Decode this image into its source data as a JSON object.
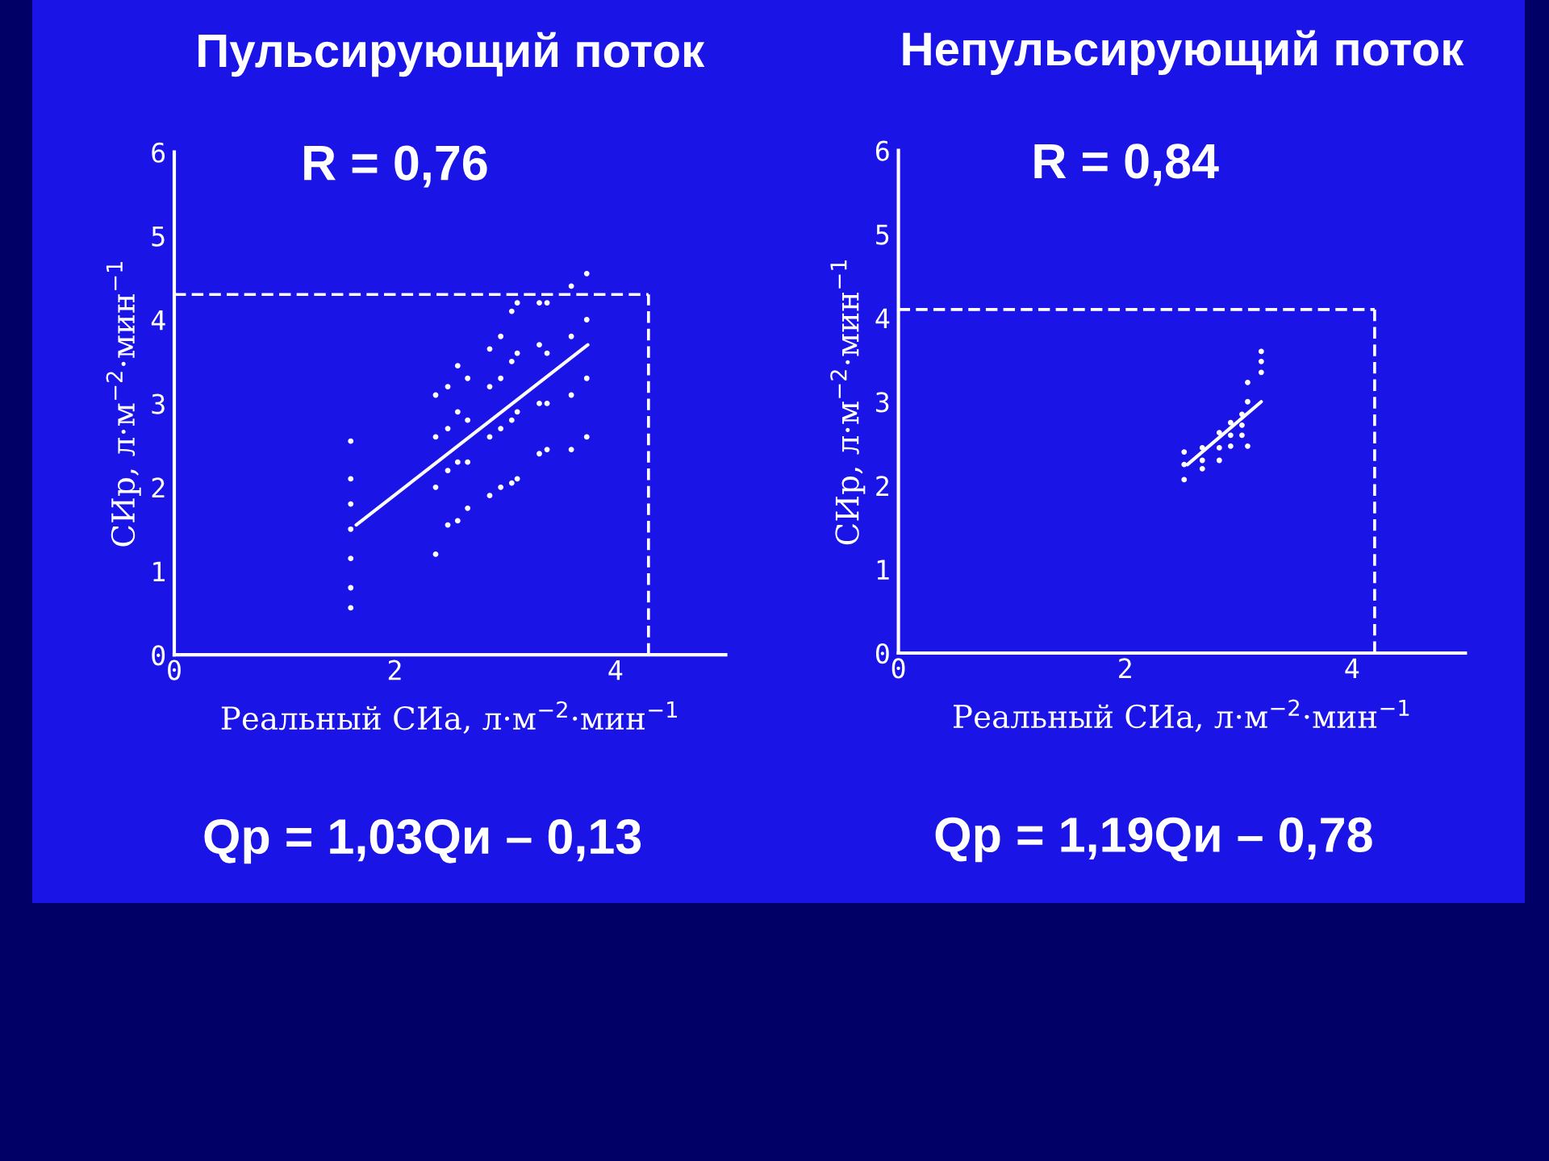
{
  "chart_data": [
    {
      "type": "scatter",
      "title": "Пульсирующий поток",
      "xlabel": "Реальный СИа, л·м$^{−2}$·мин$^{−1}$",
      "ylabel": "СИр, л·м$^{−2}$·мин$^{−1}$",
      "xlim": [
        0,
        5
      ],
      "ylim": [
        0,
        6
      ],
      "xticks": [
        0,
        2,
        4
      ],
      "yticks": [
        0,
        1,
        2,
        3,
        4,
        5,
        6
      ],
      "grid": false,
      "legend": false,
      "annotations": [
        "R = 0,76",
        "Qp = 1,03Qи – 0,13"
      ],
      "ref_lines": [
        {
          "axis": "y",
          "value": 4.3,
          "color": "#ffffff",
          "line_style": "dashed"
        },
        {
          "axis": "x",
          "value": 4.3,
          "color": "#ffffff",
          "line_style": "dashed"
        }
      ],
      "series": [
        {
          "marker": "circle",
          "color": "#ffffff",
          "x": [
            1.6,
            1.6,
            1.6,
            1.6,
            1.6,
            1.6,
            1.6,
            2.37,
            2.37,
            2.37,
            2.37,
            2.48,
            2.48,
            2.48,
            2.48,
            2.57,
            2.57,
            2.57,
            2.57,
            2.66,
            2.66,
            2.66,
            2.66,
            2.86,
            2.86,
            2.86,
            2.86,
            2.96,
            2.96,
            2.96,
            2.96,
            3.06,
            3.06,
            3.06,
            3.06,
            3.11,
            3.11,
            3.11,
            3.11,
            3.31,
            3.31,
            3.31,
            3.31,
            3.38,
            3.38,
            3.38,
            3.38,
            3.6,
            3.6,
            3.6,
            3.6,
            3.74,
            3.74,
            3.74,
            3.74
          ],
          "values": [
            2.55,
            2.1,
            1.8,
            1.5,
            1.15,
            0.8,
            0.56,
            3.1,
            2.6,
            2.0,
            1.2,
            3.2,
            2.7,
            2.2,
            1.55,
            3.45,
            2.9,
            2.3,
            1.6,
            3.3,
            2.8,
            2.3,
            1.75,
            3.65,
            3.2,
            2.6,
            1.9,
            3.8,
            3.3,
            2.7,
            2.0,
            4.1,
            3.5,
            2.8,
            2.05,
            4.2,
            3.6,
            2.9,
            2.1,
            4.2,
            3.7,
            3.0,
            2.4,
            4.2,
            3.6,
            3.0,
            2.45,
            4.4,
            3.8,
            3.1,
            2.45,
            4.55,
            4.0,
            3.3,
            2.6
          ]
        },
        {
          "type": "line",
          "color": "#ffffff",
          "x": [
            1.65,
            3.75
          ],
          "values": [
            1.55,
            3.7
          ]
        }
      ]
    },
    {
      "type": "scatter",
      "title": "Непульсирующий поток",
      "xlabel": "Реальный СИа, л·м$^{−2}$·мин$^{−1}$",
      "ylabel": "СИр, л·м$^{−2}$·мин$^{−1}$",
      "xlim": [
        0,
        5
      ],
      "ylim": [
        0,
        6
      ],
      "xticks": [
        0,
        2,
        4
      ],
      "yticks": [
        0,
        1,
        2,
        3,
        4,
        5,
        6
      ],
      "grid": false,
      "legend": false,
      "annotations": [
        "R = 0,84",
        "Qp = 1,19Qи – 0,78"
      ],
      "ref_lines": [
        {
          "axis": "y",
          "value": 4.1,
          "color": "#ffffff",
          "line_style": "dashed"
        },
        {
          "axis": "x",
          "value": 4.2,
          "color": "#ffffff",
          "line_style": "dashed"
        }
      ],
      "series": [
        {
          "marker": "circle",
          "color": "#ffffff",
          "x": [
            2.52,
            2.52,
            2.52,
            2.68,
            2.68,
            2.68,
            2.83,
            2.83,
            2.83,
            2.93,
            2.93,
            2.93,
            3.03,
            3.03,
            3.03,
            3.08,
            3.08,
            3.08,
            3.2,
            3.2,
            3.2
          ],
          "values": [
            2.4,
            2.25,
            2.07,
            2.45,
            2.3,
            2.2,
            2.63,
            2.45,
            2.3,
            2.75,
            2.6,
            2.47,
            2.85,
            2.72,
            2.6,
            3.23,
            3.0,
            2.47,
            3.6,
            3.48,
            3.35
          ]
        },
        {
          "type": "line",
          "color": "#ffffff",
          "x": [
            2.55,
            3.2
          ],
          "values": [
            2.25,
            3.0
          ]
        }
      ]
    }
  ]
}
